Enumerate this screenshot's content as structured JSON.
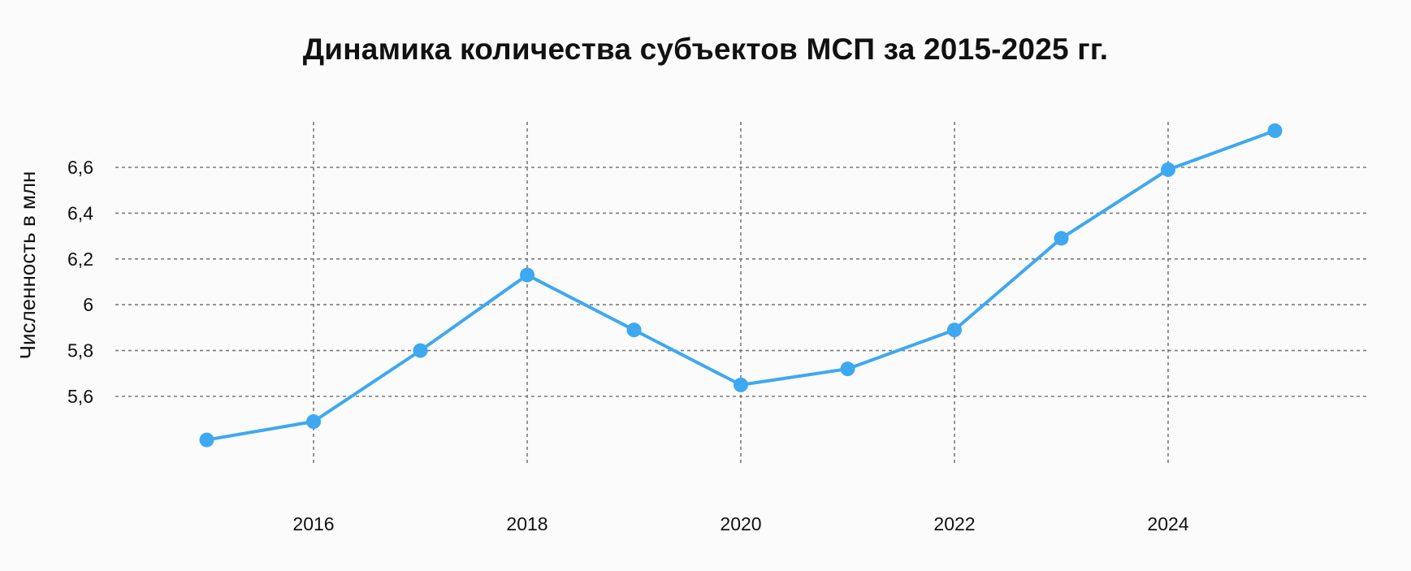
{
  "chart_data": {
    "type": "line",
    "title": "Динамика количества субъектов МСП за 2015-2025 гг.",
    "xlabel": "",
    "ylabel": "Численность в млн",
    "x": [
      2015,
      2016,
      2017,
      2018,
      2019,
      2020,
      2021,
      2022,
      2023,
      2024,
      2025
    ],
    "x_ticks": [
      "2016",
      "2018",
      "2020",
      "2022",
      "2024"
    ],
    "y_ticks": [
      "5,6",
      "5,8",
      "6",
      "6,2",
      "6,4",
      "6,6"
    ],
    "xlim": [
      2014.5,
      2026
    ],
    "ylim": [
      5.35,
      6.8
    ],
    "grid": true,
    "series": [
      {
        "color": "#3ea8f0",
        "values": [
          5.41,
          5.49,
          5.8,
          6.13,
          5.89,
          5.65,
          5.72,
          5.89,
          6.29,
          6.59,
          6.76
        ]
      }
    ]
  }
}
